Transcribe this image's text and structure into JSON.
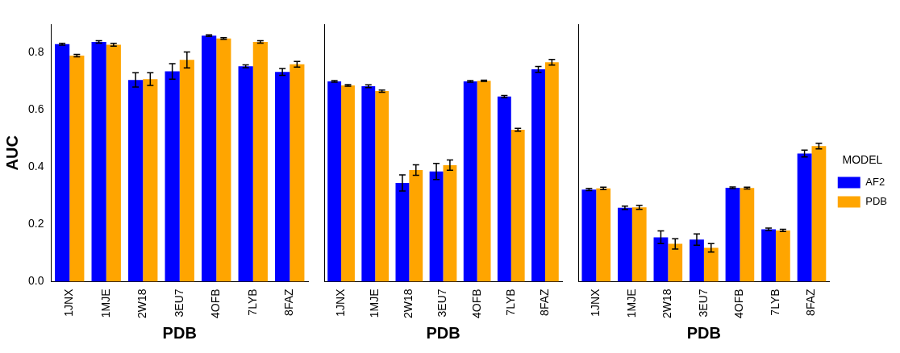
{
  "chart_data": [
    {
      "type": "bar",
      "xlabel": "PDB",
      "ylabel": "AUC",
      "categories": [
        "1JNX",
        "1MJE",
        "2W18",
        "3EU7",
        "4OFB",
        "7LYB",
        "8FAZ"
      ],
      "ylim": [
        0,
        0.9
      ],
      "yticks": [
        {
          "value": 0,
          "label": "0.0"
        },
        0.2,
        0.4,
        0.6,
        0.8
      ],
      "grid": false,
      "legend": false,
      "series": [
        {
          "color": "#0000ff",
          "values": [
            0.83,
            0.838,
            0.705,
            0.735,
            0.86,
            0.753,
            0.733
          ],
          "errors": [
            0.003,
            0.004,
            0.025,
            0.027,
            0.003,
            0.005,
            0.012
          ]
        },
        {
          "color": "#ffa500",
          "values": [
            0.79,
            0.828,
            0.708,
            0.775,
            0.85,
            0.838,
            0.76
          ],
          "errors": [
            0.004,
            0.005,
            0.022,
            0.028,
            0.003,
            0.004,
            0.01
          ]
        }
      ]
    },
    {
      "type": "bar",
      "xlabel": "PDB",
      "categories": [
        "1JNX",
        "1MJE",
        "2W18",
        "3EU7",
        "4OFB",
        "7LYB",
        "8FAZ"
      ],
      "ylim": [
        0,
        0.9
      ],
      "yticks": [
        0,
        0.2,
        0.4,
        0.6,
        0.8
      ],
      "tick_labels": "x",
      "grid": false,
      "legend": false,
      "series": [
        {
          "color": "#0000ff",
          "values": [
            0.7,
            0.683,
            0.345,
            0.385,
            0.7,
            0.647,
            0.742
          ],
          "errors": [
            0.003,
            0.005,
            0.028,
            0.028,
            0.003,
            0.004,
            0.01
          ]
        },
        {
          "color": "#ffa500",
          "values": [
            0.686,
            0.666,
            0.39,
            0.407,
            0.702,
            0.531,
            0.767
          ],
          "errors": [
            0.003,
            0.004,
            0.018,
            0.018,
            0.002,
            0.005,
            0.01
          ]
        }
      ]
    },
    {
      "type": "bar",
      "xlabel": "PDB",
      "legend_title": "MODEL",
      "categories": [
        "1JNX",
        "1MJE",
        "2W18",
        "3EU7",
        "4OFB",
        "7LYB",
        "8FAZ"
      ],
      "ylim": [
        0,
        0.9
      ],
      "yticks": [
        0,
        0.2,
        0.4,
        0.6,
        0.8
      ],
      "tick_labels": "x",
      "grid": false,
      "legend": "right",
      "series": [
        {
          "name": "AF2",
          "color": "#0000ff",
          "values": [
            0.322,
            0.258,
            0.155,
            0.147,
            0.328,
            0.183,
            0.448
          ],
          "errors": [
            0.004,
            0.006,
            0.022,
            0.02,
            0.003,
            0.004,
            0.012
          ]
        },
        {
          "name": "PDB",
          "color": "#ffa500",
          "values": [
            0.326,
            0.26,
            0.132,
            0.118,
            0.327,
            0.179,
            0.474
          ],
          "errors": [
            0.004,
            0.007,
            0.018,
            0.015,
            0.003,
            0.004,
            0.01
          ]
        }
      ]
    }
  ]
}
